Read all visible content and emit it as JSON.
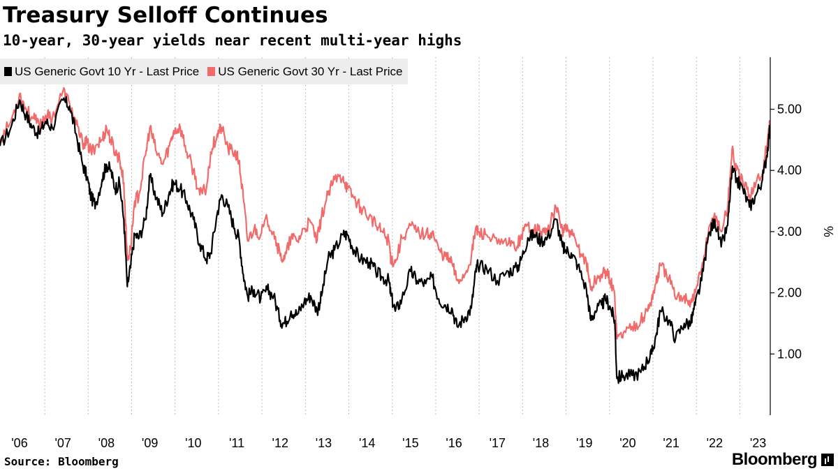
{
  "header": {
    "title": "Treasury Selloff Continues",
    "subtitle": "10-year, 30-year yields near recent multi-year highs"
  },
  "footer": {
    "source": "Source: Bloomberg",
    "brand": "Bloomberg"
  },
  "chart_data": {
    "type": "line",
    "title": "Treasury Selloff Continues",
    "subtitle": "10-year, 30-year yields near recent multi-year highs",
    "ylabel": "%",
    "ylim": [
      0,
      5.85
    ],
    "xlim": [
      2006.0,
      2023.73
    ],
    "y_ticks": [
      1.0,
      2.0,
      3.0,
      4.0,
      5.0
    ],
    "y_tick_labels": [
      "1.00",
      "2.00",
      "3.00",
      "4.00",
      "5.00"
    ],
    "x_ticks": [
      2006,
      2007,
      2008,
      2009,
      2010,
      2011,
      2012,
      2013,
      2014,
      2015,
      2016,
      2017,
      2018,
      2019,
      2020,
      2021,
      2022,
      2023
    ],
    "x_tick_labels": [
      "'06",
      "'07",
      "'08",
      "'09",
      "'10",
      "'11",
      "'12",
      "'13",
      "'14",
      "'15",
      "'16",
      "'17",
      "'18",
      "'19",
      "'20",
      "'21",
      "'22",
      "'23"
    ],
    "grid": "vertical dotted",
    "legend_position": "top-left",
    "series": [
      {
        "name": "US Generic Govt 10 Yr - Last Price",
        "color": "#000000",
        "x": [
          2006.0,
          2006.25,
          2006.45,
          2006.6,
          2006.75,
          2006.9,
          2007.05,
          2007.2,
          2007.45,
          2007.6,
          2007.75,
          2007.9,
          2008.0,
          2008.1,
          2008.2,
          2008.35,
          2008.45,
          2008.55,
          2008.65,
          2008.75,
          2008.85,
          2008.93,
          2009.0,
          2009.1,
          2009.2,
          2009.35,
          2009.45,
          2009.6,
          2009.75,
          2009.9,
          2010.0,
          2010.15,
          2010.3,
          2010.45,
          2010.6,
          2010.75,
          2010.85,
          2011.0,
          2011.1,
          2011.25,
          2011.4,
          2011.5,
          2011.6,
          2011.7,
          2011.85,
          2012.0,
          2012.15,
          2012.3,
          2012.45,
          2012.55,
          2012.7,
          2012.85,
          2013.0,
          2013.15,
          2013.3,
          2013.4,
          2013.55,
          2013.7,
          2013.9,
          2014.0,
          2014.15,
          2014.3,
          2014.5,
          2014.65,
          2014.8,
          2014.95,
          2015.0,
          2015.1,
          2015.25,
          2015.45,
          2015.6,
          2015.8,
          2015.95,
          2016.1,
          2016.25,
          2016.4,
          2016.52,
          2016.7,
          2016.85,
          2016.95,
          2017.0,
          2017.2,
          2017.45,
          2017.7,
          2017.9,
          2018.0,
          2018.15,
          2018.3,
          2018.45,
          2018.6,
          2018.8,
          2018.95,
          2019.0,
          2019.15,
          2019.3,
          2019.5,
          2019.6,
          2019.7,
          2019.85,
          2019.95,
          2020.05,
          2020.15,
          2020.2,
          2020.35,
          2020.55,
          2020.75,
          2020.9,
          2021.0,
          2021.1,
          2021.2,
          2021.4,
          2021.55,
          2021.75,
          2021.9,
          2022.0,
          2022.15,
          2022.3,
          2022.45,
          2022.6,
          2022.75,
          2022.85,
          2022.95,
          2023.1,
          2023.25,
          2023.4,
          2023.55,
          2023.65,
          2023.72
        ],
        "y": [
          4.4,
          4.7,
          5.15,
          4.9,
          4.7,
          4.6,
          4.8,
          4.7,
          5.15,
          5.05,
          4.6,
          4.1,
          3.9,
          3.55,
          3.45,
          3.85,
          4.1,
          4.0,
          3.7,
          3.8,
          3.2,
          2.1,
          2.4,
          2.95,
          2.9,
          3.2,
          3.9,
          3.55,
          3.3,
          3.65,
          3.8,
          3.7,
          3.5,
          3.2,
          2.8,
          2.55,
          2.65,
          3.3,
          3.6,
          3.4,
          3.05,
          2.9,
          2.3,
          1.95,
          2.05,
          1.9,
          2.05,
          1.95,
          1.55,
          1.5,
          1.7,
          1.65,
          1.85,
          1.95,
          1.7,
          1.95,
          2.55,
          2.7,
          2.95,
          2.95,
          2.7,
          2.55,
          2.5,
          2.35,
          2.25,
          2.2,
          1.95,
          1.7,
          1.9,
          2.35,
          2.2,
          2.15,
          2.25,
          1.9,
          1.8,
          1.75,
          1.45,
          1.6,
          1.75,
          2.35,
          2.45,
          2.4,
          2.2,
          2.35,
          2.4,
          2.55,
          2.9,
          2.95,
          2.85,
          2.9,
          3.2,
          2.75,
          2.7,
          2.65,
          2.45,
          2.05,
          1.55,
          1.7,
          1.8,
          1.9,
          1.75,
          1.55,
          0.6,
          0.65,
          0.65,
          0.7,
          0.9,
          1.0,
          1.3,
          1.7,
          1.55,
          1.25,
          1.5,
          1.5,
          1.8,
          2.2,
          2.9,
          3.2,
          2.75,
          3.1,
          4.0,
          3.85,
          3.7,
          3.4,
          3.6,
          3.85,
          4.25,
          4.7
        ]
      },
      {
        "name": "US Generic Govt 30 Yr - Last Price",
        "color": "#f26b6b",
        "x": [
          2006.0,
          2006.25,
          2006.45,
          2006.6,
          2006.75,
          2006.9,
          2007.05,
          2007.2,
          2007.45,
          2007.6,
          2007.75,
          2007.9,
          2008.0,
          2008.1,
          2008.2,
          2008.35,
          2008.45,
          2008.55,
          2008.65,
          2008.75,
          2008.85,
          2008.93,
          2009.0,
          2009.1,
          2009.2,
          2009.35,
          2009.45,
          2009.6,
          2009.75,
          2009.9,
          2010.0,
          2010.15,
          2010.3,
          2010.45,
          2010.6,
          2010.75,
          2010.85,
          2011.0,
          2011.1,
          2011.25,
          2011.4,
          2011.5,
          2011.6,
          2011.7,
          2011.85,
          2012.0,
          2012.15,
          2012.3,
          2012.45,
          2012.55,
          2012.7,
          2012.85,
          2013.0,
          2013.15,
          2013.3,
          2013.4,
          2013.55,
          2013.7,
          2013.9,
          2014.0,
          2014.15,
          2014.3,
          2014.5,
          2014.65,
          2014.8,
          2014.95,
          2015.0,
          2015.1,
          2015.25,
          2015.45,
          2015.6,
          2015.8,
          2015.95,
          2016.1,
          2016.25,
          2016.4,
          2016.52,
          2016.7,
          2016.85,
          2016.95,
          2017.0,
          2017.2,
          2017.45,
          2017.7,
          2017.9,
          2018.0,
          2018.15,
          2018.3,
          2018.45,
          2018.6,
          2018.8,
          2018.95,
          2019.0,
          2019.15,
          2019.3,
          2019.5,
          2019.6,
          2019.7,
          2019.85,
          2019.95,
          2020.05,
          2020.15,
          2020.2,
          2020.35,
          2020.55,
          2020.75,
          2020.9,
          2021.0,
          2021.1,
          2021.2,
          2021.4,
          2021.55,
          2021.75,
          2021.9,
          2022.0,
          2022.15,
          2022.3,
          2022.45,
          2022.6,
          2022.75,
          2022.85,
          2022.95,
          2023.1,
          2023.25,
          2023.4,
          2023.55,
          2023.65,
          2023.72
        ],
        "y": [
          4.5,
          4.8,
          5.25,
          5.0,
          4.85,
          4.75,
          4.9,
          4.85,
          5.3,
          5.1,
          4.75,
          4.45,
          4.45,
          4.3,
          4.4,
          4.5,
          4.7,
          4.5,
          4.3,
          4.2,
          3.8,
          2.55,
          2.7,
          3.5,
          3.6,
          4.25,
          4.7,
          4.3,
          4.1,
          4.4,
          4.65,
          4.7,
          4.3,
          4.0,
          3.6,
          3.7,
          4.3,
          4.6,
          4.7,
          4.35,
          4.3,
          4.15,
          3.55,
          2.85,
          3.05,
          2.95,
          3.2,
          3.0,
          2.6,
          2.55,
          2.9,
          2.85,
          3.05,
          3.15,
          2.85,
          3.25,
          3.6,
          3.85,
          3.9,
          3.7,
          3.55,
          3.4,
          3.25,
          3.1,
          3.0,
          2.85,
          2.55,
          2.5,
          2.9,
          3.1,
          3.0,
          2.95,
          3.0,
          2.7,
          2.6,
          2.5,
          2.2,
          2.3,
          2.6,
          3.05,
          3.0,
          2.95,
          2.8,
          2.8,
          2.75,
          2.95,
          3.1,
          3.05,
          3.0,
          3.0,
          3.4,
          3.0,
          3.05,
          2.95,
          2.75,
          2.5,
          2.05,
          2.2,
          2.3,
          2.35,
          2.2,
          1.95,
          1.25,
          1.35,
          1.45,
          1.55,
          1.7,
          1.9,
          2.15,
          2.45,
          2.25,
          1.9,
          1.95,
          1.85,
          2.0,
          2.4,
          2.95,
          3.3,
          3.0,
          3.4,
          4.35,
          4.0,
          3.8,
          3.6,
          3.8,
          3.95,
          4.4,
          4.8
        ]
      }
    ]
  }
}
